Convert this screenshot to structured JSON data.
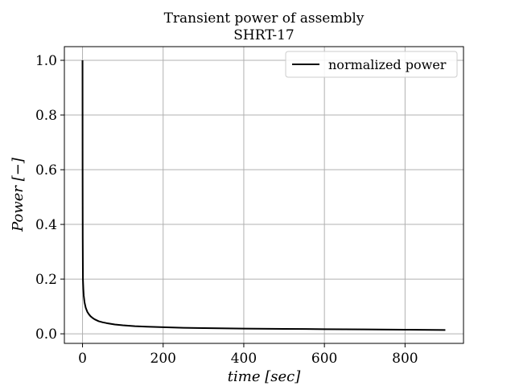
{
  "chart_data": {
    "type": "line",
    "title_line1": "Transient power of assembly",
    "title_line2": "SHRT-17",
    "xlabel": "time [sec]",
    "ylabel": "Power [−]",
    "xlim": [
      -45,
      945
    ],
    "ylim": [
      -0.035,
      1.05
    ],
    "xticks": [
      0,
      200,
      400,
      600,
      800
    ],
    "xtick_labels": [
      "0",
      "200",
      "400",
      "600",
      "800"
    ],
    "yticks": [
      0.0,
      0.2,
      0.4,
      0.6,
      0.8,
      1.0
    ],
    "ytick_labels": [
      "0.0",
      "0.2",
      "0.4",
      "0.6",
      "0.8",
      "1.0"
    ],
    "grid": true,
    "legend_position": "top-right",
    "series": [
      {
        "name": "normalized power",
        "color": "#000000",
        "x": [
          0,
          0.2,
          0.5,
          1,
          2,
          3,
          5,
          8,
          12,
          16,
          20,
          25,
          30,
          40,
          50,
          60,
          80,
          100,
          130,
          160,
          200,
          250,
          300,
          400,
          500,
          600,
          700,
          800,
          900
        ],
        "y": [
          1.0,
          0.6,
          0.35,
          0.2,
          0.165,
          0.14,
          0.115,
          0.095,
          0.08,
          0.071,
          0.064,
          0.058,
          0.053,
          0.046,
          0.042,
          0.039,
          0.034,
          0.031,
          0.028,
          0.026,
          0.024,
          0.022,
          0.021,
          0.019,
          0.018,
          0.017,
          0.016,
          0.015,
          0.014
        ]
      }
    ]
  }
}
